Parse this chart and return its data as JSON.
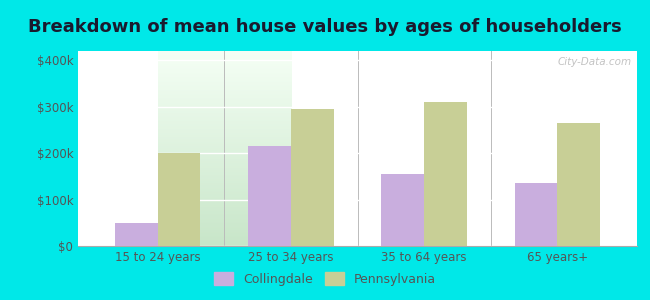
{
  "title": "Breakdown of mean house values by ages of householders",
  "categories": [
    "15 to 24 years",
    "25 to 34 years",
    "35 to 64 years",
    "65 years+"
  ],
  "collingdale": [
    50000,
    215000,
    155000,
    135000
  ],
  "pennsylvania": [
    200000,
    295000,
    310000,
    265000
  ],
  "collingdale_color": "#c9aede",
  "pennsylvania_color": "#c8cf96",
  "background_color": "#00e8e8",
  "ylim": [
    0,
    420000
  ],
  "yticks": [
    0,
    100000,
    200000,
    300000,
    400000
  ],
  "ytick_labels": [
    "$0",
    "$100k",
    "$200k",
    "$300k",
    "$400k"
  ],
  "legend_labels": [
    "Collingdale",
    "Pennsylvania"
  ],
  "bar_width": 0.32,
  "title_fontsize": 13,
  "watermark": "City-Data.com"
}
